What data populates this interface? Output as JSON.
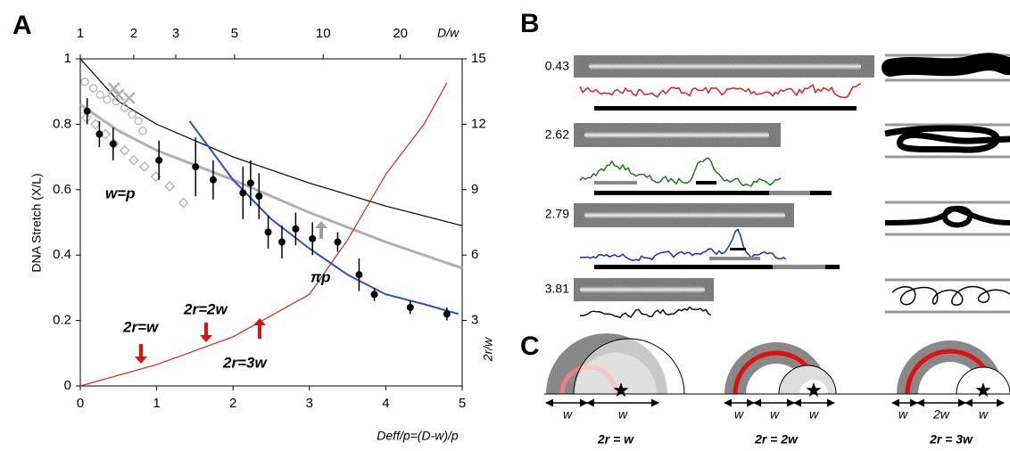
{
  "chart_data": {
    "type": "scatter",
    "ylabel": "DNA Stretch (X/L)",
    "y2label": "2r/w",
    "xlabel": "Deff/p=(D-w)/p",
    "x2label": "D/w",
    "xlim": [
      0,
      5
    ],
    "ylim": [
      0,
      1
    ],
    "y2lim": [
      0,
      15
    ],
    "xticks": [
      0,
      1,
      2,
      3,
      4,
      5
    ],
    "yticks": [
      0,
      0.2,
      0.4,
      0.6,
      0.8,
      1
    ],
    "y2ticks": [
      3,
      6,
      9,
      12,
      15
    ],
    "x2ticks": [
      {
        "value": 0,
        "label": "1"
      },
      {
        "value": 0.7,
        "label": "2"
      },
      {
        "value": 1.25,
        "label": "3"
      },
      {
        "value": 2.02,
        "label": "5"
      },
      {
        "value": 3.18,
        "label": "10"
      },
      {
        "value": 4.19,
        "label": "20"
      }
    ],
    "series": [
      {
        "marker": "dot",
        "color": "#000000",
        "x": [
          0.09,
          0.25,
          0.43,
          1.03,
          1.51,
          1.74,
          2.13,
          2.23,
          2.34,
          2.46,
          2.64,
          2.82,
          3.04,
          3.37,
          3.65,
          3.85,
          4.32,
          4.8
        ],
        "values": [
          0.84,
          0.77,
          0.74,
          0.69,
          0.67,
          0.63,
          0.59,
          0.62,
          0.58,
          0.47,
          0.44,
          0.48,
          0.45,
          0.44,
          0.34,
          0.28,
          0.24,
          0.22
        ],
        "errors": [
          0.04,
          0.04,
          0.05,
          0.06,
          0.09,
          0.06,
          0.08,
          0.07,
          0.07,
          0.05,
          0.05,
          0.05,
          0.05,
          0.03,
          0.05,
          0.02,
          0.02,
          0.02
        ]
      },
      {
        "marker": "circle",
        "color": "#b0b0b0",
        "x": [
          0.06,
          0.17,
          0.26,
          0.35,
          0.47,
          0.58,
          0.68,
          0.76,
          0.82
        ],
        "values": [
          0.93,
          0.91,
          0.89,
          0.875,
          0.87,
          0.85,
          0.83,
          0.81,
          0.78
        ]
      },
      {
        "marker": "diamond",
        "color": "#b0b0b0",
        "x": [
          0.08,
          0.2,
          0.33,
          0.44,
          0.58,
          0.7,
          0.84,
          0.99,
          1.17,
          1.35
        ],
        "values": [
          0.82,
          0.8,
          0.77,
          0.74,
          0.72,
          0.69,
          0.67,
          0.64,
          0.61,
          0.56
        ]
      },
      {
        "marker": "cross",
        "color": "#b0b0b0",
        "x": [
          0.44,
          0.5,
          0.64
        ],
        "values": [
          0.91,
          0.89,
          0.88
        ]
      },
      {
        "marker": "line",
        "color": "#000000",
        "x": [
          0,
          0.5,
          1,
          2,
          3,
          4,
          5
        ],
        "values": [
          1,
          0.87,
          0.8,
          0.7,
          0.62,
          0.55,
          0.49
        ]
      },
      {
        "marker": "line",
        "color": "#b0b0b0",
        "x": [
          0,
          0.5,
          1,
          2,
          3,
          4,
          5
        ],
        "values": [
          0.86,
          0.78,
          0.72,
          0.63,
          0.53,
          0.44,
          0.36
        ]
      },
      {
        "marker": "line",
        "color": "#2a4fd0",
        "x": [
          1.43,
          2,
          2.5,
          3,
          3.5,
          4,
          4.5,
          4.95
        ],
        "values": [
          0.81,
          0.63,
          0.51,
          0.42,
          0.34,
          0.28,
          0.25,
          0.22
        ]
      },
      {
        "marker": "line",
        "color": "#e02020",
        "axis": "y2",
        "x": [
          0,
          1,
          2,
          3,
          3.5,
          4,
          4.5,
          4.8
        ],
        "values": [
          0,
          0.98,
          2.25,
          4.2,
          6.7,
          9.7,
          12,
          13.9
        ]
      }
    ],
    "annotations": [
      "w=p",
      "πp",
      "2r=w",
      "2r=2w",
      "2r=3w"
    ]
  },
  "panel_labels": [
    "A",
    "B",
    "C"
  ],
  "panel_b": {
    "rows": [
      "0.43",
      "2.62",
      "2.79",
      "3.81"
    ]
  },
  "panel_c": {
    "diagrams": [
      {
        "labels": [
          "w",
          "w"
        ],
        "caption": "2r = w"
      },
      {
        "labels": [
          "w",
          "w",
          "w"
        ],
        "caption": "2r = 2w"
      },
      {
        "labels": [
          "w",
          "2w",
          "w"
        ],
        "caption": "2r = 3w"
      }
    ]
  }
}
